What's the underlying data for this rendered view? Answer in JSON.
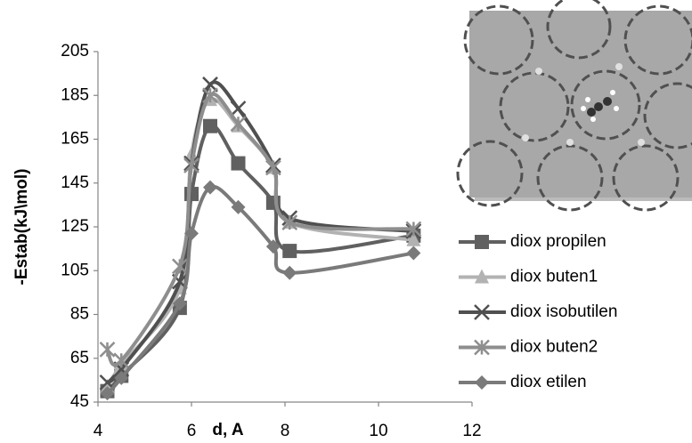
{
  "chart_data": {
    "type": "line",
    "x_label": "d, A",
    "y_label": "-Estab(kJ\\mol)",
    "x": [
      4.2,
      4.5,
      5.75,
      6.0,
      6.4,
      7.0,
      7.75,
      8.1,
      10.75
    ],
    "series": [
      {
        "name": "diox propilen",
        "color": "#606060",
        "marker": "square",
        "values": [
          50,
          57,
          88,
          140,
          171,
          154,
          136,
          114,
          121
        ]
      },
      {
        "name": "diox buten1",
        "color": "#b2b2b2",
        "marker": "triangle",
        "values": [
          52,
          62,
          97,
          158,
          183,
          171,
          152,
          127,
          119
        ]
      },
      {
        "name": "diox isobutilen",
        "color": "#505050",
        "marker": "x",
        "values": [
          54,
          60,
          100,
          154,
          190,
          179,
          153,
          129,
          123
        ]
      },
      {
        "name": "diox buten2",
        "color": "#8e8e8e",
        "marker": "star",
        "values": [
          69,
          64,
          107,
          153,
          185,
          172,
          152,
          127,
          124
        ]
      },
      {
        "name": "diox etilen",
        "color": "#7a7a7a",
        "marker": "diamond",
        "values": [
          49,
          56,
          90,
          122,
          143,
          134,
          116,
          104,
          113
        ]
      }
    ],
    "xlim": [
      4,
      12
    ],
    "xticks": [
      4,
      6,
      8,
      10,
      12
    ],
    "ylim": [
      45,
      205
    ],
    "yticks": [
      45,
      65,
      85,
      105,
      125,
      145,
      165,
      185,
      205
    ],
    "smooth": true,
    "grid": false,
    "legend": "right"
  }
}
